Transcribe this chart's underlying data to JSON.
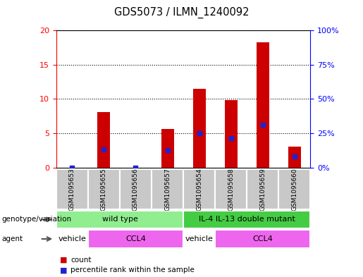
{
  "title": "GDS5073 / ILMN_1240092",
  "samples": [
    "GSM1095653",
    "GSM1095655",
    "GSM1095656",
    "GSM1095657",
    "GSM1095654",
    "GSM1095658",
    "GSM1095659",
    "GSM1095660"
  ],
  "counts": [
    0.0,
    8.1,
    0.0,
    5.6,
    11.5,
    9.8,
    18.3,
    3.1
  ],
  "percentile_ranks": [
    0.0,
    2.7,
    0.0,
    2.5,
    5.0,
    4.3,
    6.2,
    1.6
  ],
  "left_ylim": [
    0,
    20
  ],
  "right_ylim": [
    0,
    100
  ],
  "left_yticks": [
    0,
    5,
    10,
    15,
    20
  ],
  "right_yticks": [
    0,
    25,
    50,
    75,
    100
  ],
  "left_ytick_labels": [
    "0",
    "5",
    "10",
    "15",
    "20"
  ],
  "right_ytick_labels": [
    "0%",
    "25%",
    "50%",
    "75%",
    "100%"
  ],
  "bar_color": "#cc0000",
  "dot_color": "#2222cc",
  "sample_box_color": "#c8c8c8",
  "genotype_color_wt": "#90ee90",
  "genotype_color_mut": "#44cc44",
  "agent_vehicle_color": "#ffffff",
  "agent_ccl4_color": "#ee66ee",
  "legend_count_color": "#cc0000",
  "legend_percentile_color": "#2222cc",
  "bar_width": 0.4,
  "genotype_groups": [
    {
      "label": "wild type",
      "start": 0,
      "end": 4
    },
    {
      "label": "IL-4 IL-13 double mutant",
      "start": 4,
      "end": 8
    }
  ],
  "agent_segments": [
    {
      "label": "vehicle",
      "start": 0,
      "end": 1,
      "type": "vehicle"
    },
    {
      "label": "CCL4",
      "start": 1,
      "end": 4,
      "type": "ccl4"
    },
    {
      "label": "vehicle",
      "start": 4,
      "end": 5,
      "type": "vehicle"
    },
    {
      "label": "CCL4",
      "start": 5,
      "end": 8,
      "type": "ccl4"
    }
  ]
}
